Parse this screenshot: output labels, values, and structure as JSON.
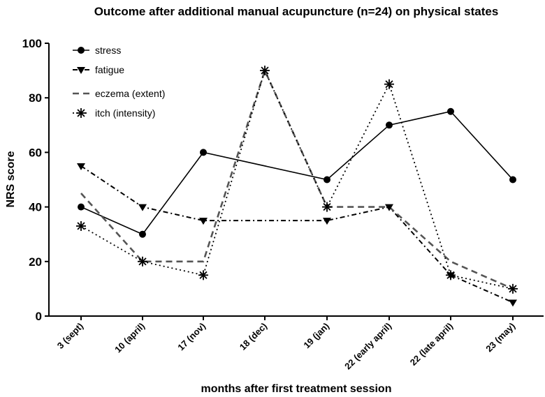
{
  "chart_data": {
    "type": "line",
    "title": "Outcome after additional manual acupuncture (n=24) on physical states",
    "xlabel": "months after first treatment session",
    "ylabel": "NRS score",
    "ylim": [
      0,
      100
    ],
    "yticks": [
      "0",
      "20",
      "40",
      "60",
      "80",
      "100"
    ],
    "categories": [
      "3 (sept)",
      "10 (april)",
      "17 (nov)",
      "18 (dec)",
      "19 (jan)",
      "22 (early april)",
      "22 (late april)",
      "23 (may)"
    ],
    "legend_position": "top-left",
    "series": [
      {
        "name": "stress",
        "marker": "circle",
        "line_style": "solid",
        "color": "#000000",
        "values": [
          40,
          30,
          60,
          null,
          50,
          70,
          75,
          50
        ]
      },
      {
        "name": "fatigue",
        "marker": "triangle-down",
        "line_style": "dash-dot",
        "color": "#000000",
        "values": [
          55,
          40,
          35,
          null,
          35,
          40,
          15,
          5
        ]
      },
      {
        "name": "eczema (extent)",
        "marker": "none",
        "line_style": "dashed",
        "color": "#555555",
        "values": [
          45,
          20,
          20,
          90,
          40,
          40,
          20,
          10
        ]
      },
      {
        "name": "itch (intensity)",
        "marker": "asterisk",
        "line_style": "dotted",
        "color": "#000000",
        "values": [
          33,
          20,
          15,
          90,
          40,
          85,
          15,
          10
        ]
      }
    ]
  }
}
